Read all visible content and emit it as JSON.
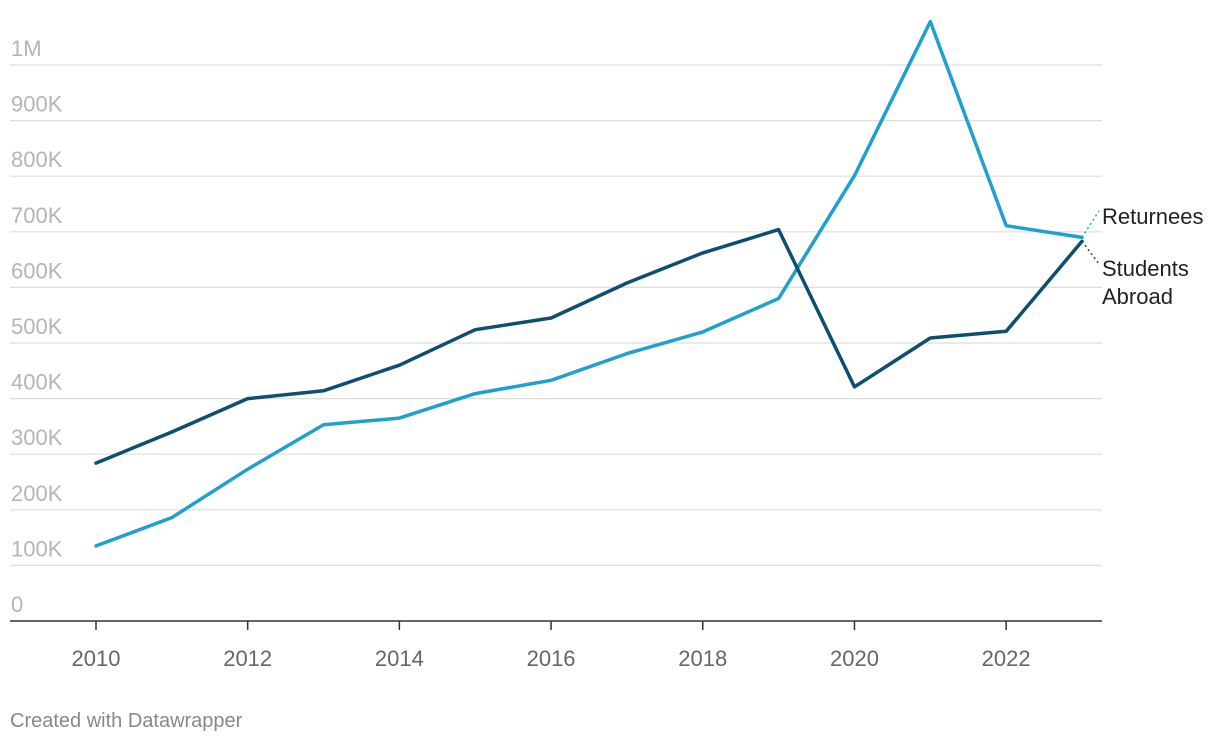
{
  "chart_data": {
    "type": "line",
    "x": [
      2010,
      2011,
      2012,
      2013,
      2014,
      2015,
      2016,
      2017,
      2018,
      2019,
      2020,
      2021,
      2022,
      2023
    ],
    "series": [
      {
        "name": "Returnees",
        "color": "#1fa1cf",
        "values": [
          135000,
          186000,
          273000,
          353000,
          365000,
          409000,
          433000,
          481000,
          520000,
          580000,
          801000,
          1078000,
          711000,
          690000
        ]
      },
      {
        "name": "Students Abroad",
        "label_lines": [
          "Students",
          "Abroad"
        ],
        "color": "#0d4f70",
        "values": [
          284000,
          340000,
          400000,
          414000,
          460000,
          524000,
          545000,
          608000,
          662000,
          704000,
          421000,
          509000,
          521000,
          683000
        ]
      }
    ],
    "y_ticks": [
      {
        "value": 0,
        "label": "0"
      },
      {
        "value": 100000,
        "label": "100K"
      },
      {
        "value": 200000,
        "label": "200K"
      },
      {
        "value": 300000,
        "label": "300K"
      },
      {
        "value": 400000,
        "label": "400K"
      },
      {
        "value": 500000,
        "label": "500K"
      },
      {
        "value": 600000,
        "label": "600K"
      },
      {
        "value": 700000,
        "label": "700K"
      },
      {
        "value": 800000,
        "label": "800K"
      },
      {
        "value": 900000,
        "label": "900K"
      },
      {
        "value": 1000000,
        "label": "1M"
      }
    ],
    "x_ticks": [
      {
        "value": 2010,
        "label": "2010"
      },
      {
        "value": 2012,
        "label": "2012"
      },
      {
        "value": 2014,
        "label": "2014"
      },
      {
        "value": 2016,
        "label": "2016"
      },
      {
        "value": 2018,
        "label": "2018"
      },
      {
        "value": 2020,
        "label": "2020"
      },
      {
        "value": 2022,
        "label": "2022"
      }
    ],
    "xlim": [
      2010,
      2023
    ],
    "ylim": [
      0,
      1000000
    ],
    "grid": true,
    "legend": "direct labels at right end of lines"
  },
  "footer": {
    "credit": "Created with Datawrapper"
  }
}
